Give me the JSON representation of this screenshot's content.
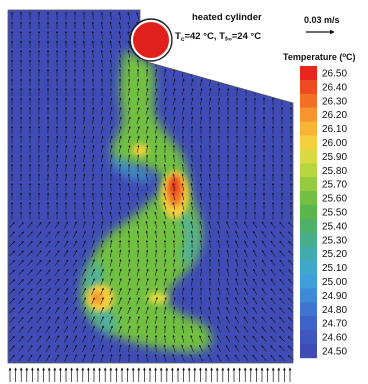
{
  "cylinder": {
    "label": "heated cylinder",
    "tc_label": "T",
    "tc_sub": "c",
    "tc_value": "=42 °C, T",
    "tinf_sub": "f∞",
    "tinf_value": "=24 °C",
    "fill_color": "#e0201c"
  },
  "velocity_scale": {
    "label": "0.03 m/s"
  },
  "colorbar": {
    "title_main": "Temperature (",
    "title_sup": "o",
    "title_end": "C)",
    "ticks": [
      "26.50",
      "26.40",
      "26.30",
      "26.20",
      "26.10",
      "26.00",
      "25.90",
      "25.80",
      "25.70",
      "25.60",
      "25.50",
      "25.40",
      "25.30",
      "25.20",
      "25.10",
      "25.00",
      "24.90",
      "24.80",
      "24.70",
      "24.60",
      "24.50"
    ],
    "colors": [
      "#e8261e",
      "#ef4a22",
      "#f36f26",
      "#f7942c",
      "#f8b436",
      "#f3cf3e",
      "#dad93f",
      "#b7d53e",
      "#95cb3f",
      "#72c043",
      "#5ab54a",
      "#4fb169",
      "#47ae8c",
      "#41abad",
      "#3fa9cc",
      "#3f9fdc",
      "#3f8ad8",
      "#3f75d0",
      "#3f63c8",
      "#3f56bf",
      "#3f4cb6"
    ]
  },
  "field": {
    "background_color": "#3f4cb6"
  }
}
